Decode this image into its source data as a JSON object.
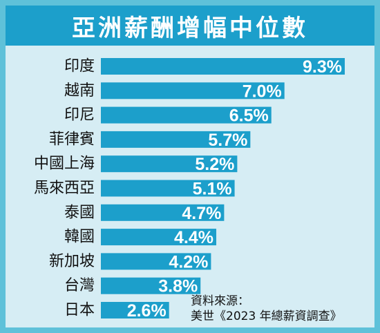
{
  "chart_data": {
    "type": "bar",
    "orientation": "horizontal",
    "title": "亞洲薪酬增幅中位數",
    "categories": [
      "印度",
      "越南",
      "印尼",
      "菲律賓",
      "中國上海",
      "馬來西亞",
      "泰國",
      "韓國",
      "新加坡",
      "台灣",
      "日本"
    ],
    "values": [
      9.3,
      7.0,
      6.5,
      5.7,
      5.2,
      5.1,
      4.7,
      4.4,
      4.2,
      3.8,
      2.6
    ],
    "value_labels": [
      "9.3%",
      "7.0%",
      "6.5%",
      "5.7%",
      "5.2%",
      "5.1%",
      "4.7%",
      "4.4%",
      "4.2%",
      "3.8%",
      "2.6%"
    ],
    "xlim": [
      0,
      9.3
    ],
    "grid": false,
    "legend": "none",
    "bar_color": "#1c9fcb"
  },
  "source": {
    "label": "資料來源：",
    "text": "美世《2023 年總薪資調查》"
  },
  "colors": {
    "frame_border": "#5fc1d9",
    "background": "#d6edf4",
    "title_bar": "#1c9fcb"
  }
}
